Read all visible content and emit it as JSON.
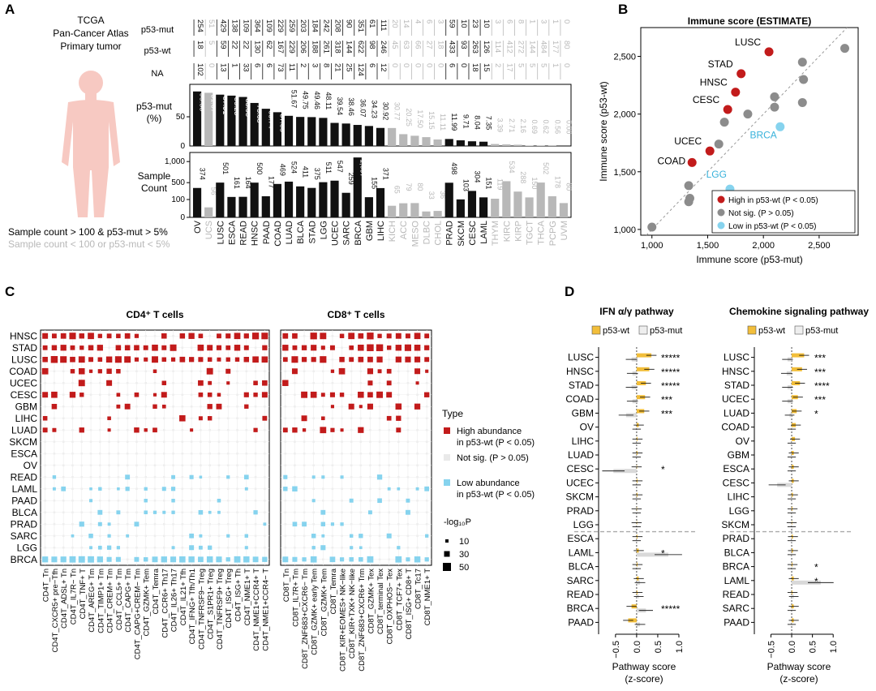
{
  "colors": {
    "black": "#111111",
    "gray": "#b8b8b8",
    "red": "#c21b1b",
    "lightblue": "#86d3ee",
    "grayDot": "#8c8c8c",
    "silhouette": "#f7c9c2",
    "gold": "#f2be3a",
    "lightgray": "#d9d9d9"
  },
  "panel_labels": {
    "a": "A",
    "b": "B",
    "c": "C",
    "d": "D"
  },
  "panelA": {
    "cohort": [
      "TCGA",
      "Pan-Cancer Atlas",
      "Primary tumor"
    ],
    "legend_black": "Sample count > 100 & p53-mut > 5%",
    "legend_gray": "Sample count < 100 or p53-mut < 5%",
    "row_labels": {
      "mut": "p53-mut",
      "wt": "p53-wt",
      "na": "NA"
    },
    "pct_label": [
      "p53-mut",
      "(%)"
    ],
    "count_label": [
      "Sample",
      "Count"
    ]
  },
  "chart_data": [
    {
      "id": "A",
      "type": "bar",
      "title": "",
      "categories": [
        "OV",
        "UCS",
        "LUSC",
        "ESCA",
        "READ",
        "HNSC",
        "PAAD",
        "COAD",
        "LUAD",
        "BLCA",
        "STAD",
        "LGG",
        "UCEC",
        "SARC",
        "BRCA",
        "GBM",
        "LIHC",
        "KICH",
        "ACC",
        "MESO",
        "DLBC",
        "CHOL",
        "PRAD",
        "SKCM",
        "CESC",
        "LAML",
        "THYM",
        "KIRC",
        "KIRP",
        "TGCT",
        "THCA",
        "PCPG",
        "UVM"
      ],
      "highlight": [
        1,
        0,
        1,
        1,
        1,
        1,
        1,
        1,
        1,
        1,
        1,
        1,
        1,
        1,
        1,
        1,
        1,
        0,
        0,
        0,
        0,
        0,
        1,
        1,
        1,
        1,
        0,
        0,
        0,
        0,
        0,
        0,
        0
      ],
      "mut_counts": [
        "254",
        "51",
        "429",
        "138",
        "109",
        "364",
        "109",
        "229",
        "259",
        "203",
        "184",
        "242",
        "208",
        "90",
        "351",
        "61",
        "111",
        "20",
        "14",
        "4",
        "6",
        "3",
        "59",
        "10",
        "23",
        "10",
        "3",
        "6",
        "8",
        "1",
        "3",
        "1",
        "0"
      ],
      "wt_counts": [
        "18",
        "5",
        "59",
        "22",
        "22",
        "130",
        "62",
        "167",
        "229",
        "206",
        "188",
        "261",
        "318",
        "144",
        "622",
        "98",
        "246",
        "45",
        "63",
        "66",
        "27",
        "18",
        "433",
        "93",
        "263",
        "126",
        "114",
        "412",
        "272",
        "144",
        "484",
        "177",
        "80"
      ],
      "na_counts": [
        "102",
        "0",
        "13",
        "1",
        "33",
        "6",
        "6",
        "73",
        "11",
        "2",
        "3",
        "8",
        "21",
        "25",
        "124",
        "6",
        "12",
        "0",
        "0",
        "0",
        "0",
        "0",
        "6",
        "0",
        "18",
        "15",
        "2",
        "17",
        "5",
        "5",
        "5",
        "1",
        "0"
      ],
      "series": [
        {
          "name": "p53-mut (%)",
          "values": [
            93.38,
            91.07,
            87.91,
            86.25,
            83.95,
            73.68,
            63.74,
            57.83,
            51.67,
            49.75,
            49.46,
            48.11,
            39.54,
            38.46,
            36.07,
            34.23,
            30.92,
            30.77,
            20.25,
            17.5,
            15.15,
            11.11,
            11.99,
            9.71,
            8.04,
            7.35,
            3.39,
            2.71,
            2.16,
            0.69,
            0.62,
            0.56,
            0.0
          ]
        },
        {
          "name": "Sample Count",
          "values": [
            374,
            56,
            501,
            161,
            164,
            500,
            177,
            469,
            524,
            411,
            375,
            511,
            547,
            259,
            1097,
            155,
            371,
            65,
            79,
            80,
            33,
            36,
            498,
            103,
            304,
            151,
            119,
            534,
            288,
            150,
            502,
            178,
            80
          ]
        }
      ],
      "pct_ticks": [
        "0",
        "50"
      ],
      "count_ticks": [
        "1,000",
        "500",
        "100",
        "0"
      ]
    },
    {
      "id": "B",
      "type": "scatter",
      "title": "Immune score (ESTIMATE)",
      "xlabel": "Immune score (p53-mut)",
      "ylabel": "Immune score (p53-wt)",
      "xlim": [
        900,
        2850
      ],
      "ylim": [
        950,
        2750
      ],
      "x_ticks": [
        "1,000",
        "1,500",
        "2,000",
        "2,500"
      ],
      "y_ticks": [
        "1,000",
        "1,500",
        "2,000",
        "2,500"
      ],
      "points": [
        {
          "label": "LUSC",
          "x": 2050,
          "y": 2540,
          "group": "high"
        },
        {
          "label": "STAD",
          "x": 1800,
          "y": 2350,
          "group": "high"
        },
        {
          "label": "HNSC",
          "x": 1750,
          "y": 2190,
          "group": "high"
        },
        {
          "label": "CESC",
          "x": 1680,
          "y": 2040,
          "group": "high"
        },
        {
          "label": "UCEC",
          "x": 1520,
          "y": 1680,
          "group": "high"
        },
        {
          "label": "COAD",
          "x": 1360,
          "y": 1580,
          "group": "high"
        },
        {
          "label": "BRCA",
          "x": 2150,
          "y": 1890,
          "group": "low"
        },
        {
          "label": "LGG",
          "x": 1700,
          "y": 1350,
          "group": "low"
        },
        {
          "label": "",
          "x": 1000,
          "y": 1020,
          "group": "ns"
        },
        {
          "label": "",
          "x": 1340,
          "y": 1270,
          "group": "ns"
        },
        {
          "label": "",
          "x": 1330,
          "y": 1240,
          "group": "ns"
        },
        {
          "label": "",
          "x": 1330,
          "y": 1380,
          "group": "ns"
        },
        {
          "label": "",
          "x": 1600,
          "y": 1740,
          "group": "ns"
        },
        {
          "label": "",
          "x": 1650,
          "y": 1930,
          "group": "ns"
        },
        {
          "label": "",
          "x": 1860,
          "y": 2000,
          "group": "ns"
        },
        {
          "label": "",
          "x": 2100,
          "y": 2060,
          "group": "ns"
        },
        {
          "label": "",
          "x": 2100,
          "y": 2150,
          "group": "ns"
        },
        {
          "label": "",
          "x": 2360,
          "y": 2300,
          "group": "ns"
        },
        {
          "label": "",
          "x": 2350,
          "y": 2450,
          "group": "ns"
        },
        {
          "label": "",
          "x": 2730,
          "y": 2570,
          "group": "ns"
        },
        {
          "label": "",
          "x": 2350,
          "y": 2100,
          "group": "ns"
        }
      ],
      "legend": [
        {
          "group": "high",
          "label": "High in p53-wt  (P < 0.05)"
        },
        {
          "group": "ns",
          "label": "Not sig.  (P > 0.05)"
        },
        {
          "group": "low",
          "label": "Low in p53-wt  (P < 0.05)"
        }
      ]
    },
    {
      "id": "C",
      "type": "heatmap",
      "rows": [
        "HNSC",
        "STAD",
        "LUSC",
        "COAD",
        "UCEC",
        "CESC",
        "GBM",
        "LIHC",
        "LUAD",
        "SKCM",
        "ESCA",
        "OV",
        "READ",
        "LAML",
        "PAAD",
        "BLCA",
        "PRAD",
        "SARC",
        "LGG",
        "BRCA"
      ],
      "panels": [
        {
          "title": "CD4⁺ T cells",
          "columns": [
            "CD4T_Tn",
            "CD4T_CXCR5+ pre−Tfh",
            "CD4T_ADSL+ Tn",
            "CD4T_IL7R− Tn",
            "CD4T_TNF+ T",
            "CD4T_AREG+ Tm",
            "CD4T_TIMP1+ Tm",
            "CD4T_CREM+ Tm",
            "CD4T_CCL5+ Tm",
            "CD4T_CAPG+ Tm",
            "CD4T_CAPG+CREM− Tm",
            "CD4T_GZMK+ Tem",
            "CD4T_Temra",
            "CD4T_CCR6+ Th17",
            "CD4T_IL26+ Th17",
            "CD4T_IL21+ Tfh",
            "CD4T_IFNG+ Tfh/Th1",
            "CD4T_TNFRSF9− Treg",
            "CD4T_S1PR1+ Treg",
            "CD4T_TNFRSF9+ Treg",
            "CD4T_ISG+ Treg",
            "CD4T_ISG+ Th",
            "CD4T_NME1+ T",
            "CD4T_NME1+CCR4+ T",
            "CD4T_NME1+CCR4− T"
          ]
        },
        {
          "title": "CD8⁺ T cells",
          "columns": [
            "CD8T_Tn",
            "CD8T_IL7R+ Tm",
            "CD8T_ZNF683+CXCR6− Tm",
            "CD8T_GZMK+ early Tem",
            "CD8T_GZMK+ Tem",
            "CD8T_Temra",
            "CD8T_KIR+EOMES+ NK−like",
            "CD8T_KIR+TXK+ NK−like",
            "CD8T_ZNF683+CXCR6+ Trm",
            "CD8T_GZMK+ Tex",
            "CD8T_terminal Tex",
            "CD8T_OXPHOS− Tex",
            "CD8T_TCF7+ Tex",
            "CD8T_ISG+ CD8+ T",
            "CD8T_Tc17",
            "CD8T_NME1+ T"
          ]
        }
      ],
      "legend_title": "Type",
      "legend_items": [
        {
          "key": "high",
          "label": [
            "High abundance",
            "in p53-wt (P < 0.05)"
          ]
        },
        {
          "key": "ns",
          "label": [
            "Not sig.  (P > 0.05)"
          ]
        },
        {
          "key": "low",
          "label": [
            "Low abundance",
            "in p53-wt (P < 0.05)"
          ]
        }
      ],
      "size_legend_title": "-log₁₀P",
      "size_legend": [
        "10",
        "30",
        "50"
      ]
    },
    {
      "id": "D",
      "type": "bar",
      "legend": [
        "p53-wt",
        "p53-mut"
      ],
      "xlabel": [
        "Pathway score",
        "(z-score)"
      ],
      "x_ticks": [
        "−0.5",
        "0.0",
        "0.5",
        "1.0"
      ],
      "xlim": [
        -0.9,
        1.25
      ],
      "panels": [
        {
          "title": "IFN α/γ pathway",
          "rows": [
            "LUSC",
            "HNSC",
            "STAD",
            "COAD",
            "GBM",
            "OV",
            "LIHC",
            "LUAD",
            "CESC",
            "UCEC",
            "SKCM",
            "PRAD",
            "LGG",
            "ESCA",
            "LAML",
            "BLCA",
            "SARC",
            "READ",
            "BRCA",
            "PAAD"
          ],
          "wt": [
            0.35,
            0.3,
            0.22,
            0.2,
            0.18,
            0.05,
            0.02,
            0.02,
            0.0,
            0.02,
            0.02,
            0.0,
            0.0,
            0.02,
            0.05,
            0.02,
            0.05,
            0.02,
            -0.12,
            -0.2
          ],
          "mut": [
            -0.12,
            -0.1,
            -0.12,
            -0.1,
            -0.25,
            0.0,
            0.0,
            0.0,
            -0.55,
            0.0,
            0.0,
            0.0,
            0.0,
            0.0,
            0.75,
            0.0,
            0.08,
            0.05,
            0.22,
            0.08
          ],
          "sig": [
            "*****",
            "*****",
            "*****",
            "***",
            "***",
            "",
            "",
            "",
            "*",
            "",
            "",
            "",
            "",
            "",
            "*",
            "",
            "",
            "",
            "*****",
            ""
          ],
          "split_after": 12
        },
        {
          "title": "Chemokine signaling pathway",
          "rows": [
            "LUSC",
            "HNSC",
            "STAD",
            "UCEC",
            "LUAD",
            "COAD",
            "OV",
            "GBM",
            "ESCA",
            "CESC",
            "LIHC",
            "LGG",
            "SKCM",
            "PRAD",
            "BLCA",
            "BRCA",
            "LAML",
            "READ",
            "SARC",
            "PAAD"
          ],
          "wt": [
            0.3,
            0.25,
            0.2,
            0.15,
            0.12,
            0.1,
            0.08,
            0.05,
            0.05,
            0.05,
            0.03,
            0.02,
            0.0,
            0.03,
            0.03,
            0.02,
            0.05,
            0.02,
            0.05,
            0.05
          ],
          "mut": [
            -0.1,
            -0.12,
            -0.1,
            -0.1,
            -0.05,
            0.0,
            0.0,
            0.0,
            0.0,
            -0.35,
            0.0,
            0.0,
            0.0,
            0.0,
            0.0,
            0.0,
            0.7,
            0.05,
            0.0,
            0.0
          ],
          "sig": [
            "***",
            "***",
            "****",
            "***",
            "*",
            "",
            "",
            "",
            "",
            "",
            "",
            "",
            "",
            "",
            "",
            "*",
            "*",
            "",
            "",
            ""
          ],
          "split_after": 12
        }
      ]
    }
  ]
}
